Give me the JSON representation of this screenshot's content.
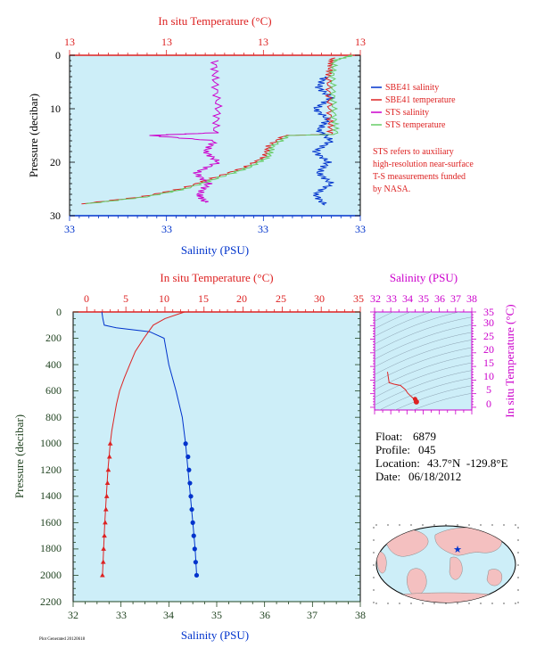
{
  "colors": {
    "panel_fill": "#cdeef8",
    "salinity": "#0033cc",
    "temperature": "#dd2222",
    "sts_salinity": "#cc00cc",
    "sts_temperature": "#66cc66",
    "pressure_axis": "#224422",
    "magenta": "#cc00cc",
    "land": "#f4c0c0",
    "ocean": "#cdeef8"
  },
  "top_panel": {
    "top_axis_label": "In situ Temperature (°C)",
    "bottom_axis_label": "Salinity (PSU)",
    "y_axis_label": "Pressure (decibar)",
    "top_ticks": [
      "13",
      "13",
      "13",
      "13"
    ],
    "bottom_ticks": [
      "33",
      "33",
      "33",
      "33"
    ],
    "y_ticks": [
      "0",
      "10",
      "20",
      "30"
    ],
    "legend": [
      {
        "label": "SBE41 salinity",
        "color": "#0033cc"
      },
      {
        "label": "SBE41 temperature",
        "color": "#dd2222"
      },
      {
        "label": "STS salinity",
        "color": "#cc00cc"
      },
      {
        "label": "STS temperature",
        "color": "#66cc66"
      }
    ],
    "note_lines": [
      "STS refers to auxiliary",
      "high-resolution near-surface",
      "T-S measurements funded",
      "by NASA."
    ]
  },
  "bottom_panel": {
    "top_axis_label": "In situ Temperature (°C)",
    "bottom_axis_label": "Salinity (PSU)",
    "y_axis_label": "Pressure (decibar)",
    "top_ticks": [
      "0",
      "5",
      "10",
      "15",
      "20",
      "25",
      "30",
      "35"
    ],
    "bottom_ticks": [
      "32",
      "33",
      "34",
      "35",
      "36",
      "37",
      "38"
    ],
    "y_ticks": [
      "0",
      "200",
      "400",
      "600",
      "800",
      "1000",
      "1200",
      "1400",
      "1600",
      "1800",
      "2000",
      "2200"
    ]
  },
  "ts_panel": {
    "top_axis_label": "Salinity (PSU)",
    "right_axis_label": "In situ Temperature (°C)",
    "top_ticks": [
      "32",
      "33",
      "34",
      "35",
      "36",
      "37",
      "38"
    ],
    "right_ticks": [
      "0",
      "5",
      "10",
      "15",
      "20",
      "25",
      "30",
      "35"
    ]
  },
  "float_info": [
    {
      "key": "Float:",
      "value": "6879"
    },
    {
      "key": "Profile:",
      "value": "045"
    },
    {
      "key": "Location:",
      "value": "43.7°N  -129.8°E"
    },
    {
      "key": "Date:",
      "value": "06/18/2012"
    }
  ],
  "footer_text": "Plot Generated 20120618",
  "chart_data": [
    {
      "type": "line",
      "title": "",
      "xlabel": "Salinity (PSU)",
      "x2label": "In situ Temperature (°C)",
      "ylabel": "Pressure (decibar)",
      "xlim": [
        32.2,
        33.1
      ],
      "x2lim": [
        8.2,
        15.5
      ],
      "ylim": [
        30,
        0
      ],
      "grid": false,
      "legend_position": "right",
      "series": [
        {
          "name": "SBE41 salinity",
          "axis": "salinity",
          "points": [
            [
              32.99,
              4
            ],
            [
              32.97,
              6
            ],
            [
              33.01,
              8
            ],
            [
              32.96,
              10
            ],
            [
              33.0,
              12
            ],
            [
              32.97,
              14
            ],
            [
              33.01,
              16
            ],
            [
              32.96,
              18
            ],
            [
              33.0,
              20
            ],
            [
              32.97,
              22
            ],
            [
              33.01,
              24
            ],
            [
              32.96,
              26
            ],
            [
              32.99,
              28
            ]
          ]
        },
        {
          "name": "SBE41 temperature",
          "axis": "temperature",
          "points": [
            [
              14.8,
              0.5
            ],
            [
              14.75,
              2
            ],
            [
              14.7,
              4
            ],
            [
              14.72,
              8
            ],
            [
              14.74,
              12
            ],
            [
              14.76,
              14.8
            ],
            [
              13.6,
              15
            ],
            [
              13.2,
              17
            ],
            [
              13.1,
              19
            ],
            [
              12.6,
              21
            ],
            [
              11.8,
              23
            ],
            [
              11.0,
              25
            ],
            [
              10.0,
              26.5
            ],
            [
              8.5,
              27.8
            ]
          ]
        },
        {
          "name": "STS salinity",
          "axis": "salinity",
          "points": [
            [
              32.65,
              1
            ],
            [
              32.65,
              5
            ],
            [
              32.66,
              10
            ],
            [
              32.65,
              14.5
            ],
            [
              32.45,
              15
            ],
            [
              32.65,
              16
            ],
            [
              32.62,
              18
            ],
            [
              32.66,
              20
            ],
            [
              32.59,
              22
            ],
            [
              32.63,
              24
            ],
            [
              32.6,
              26
            ],
            [
              32.62,
              27.5
            ]
          ]
        },
        {
          "name": "STS temperature",
          "axis": "temperature",
          "points": [
            [
              15.3,
              0
            ],
            [
              14.85,
              1
            ],
            [
              14.8,
              4
            ],
            [
              14.82,
              8
            ],
            [
              14.85,
              12
            ],
            [
              14.9,
              14.8
            ],
            [
              13.7,
              15
            ],
            [
              13.3,
              17
            ],
            [
              13.2,
              19
            ],
            [
              12.7,
              21
            ],
            [
              11.9,
              23
            ],
            [
              11.1,
              25
            ],
            [
              10.1,
              26.5
            ],
            [
              8.6,
              27.8
            ]
          ]
        }
      ]
    },
    {
      "type": "line",
      "title": "",
      "xlabel": "Salinity (PSU)",
      "x2label": "In situ Temperature (°C)",
      "ylabel": "Pressure (decibar)",
      "xlim": [
        32,
        38
      ],
      "x2lim": [
        -2,
        35
      ],
      "ylim": [
        2200,
        0
      ],
      "grid": false,
      "series": [
        {
          "name": "Salinity",
          "axis": "salinity",
          "points": [
            [
              32.6,
              0
            ],
            [
              32.62,
              50
            ],
            [
              32.65,
              100
            ],
            [
              32.9,
              120
            ],
            [
              33.6,
              150
            ],
            [
              33.9,
              200
            ],
            [
              34.0,
              400
            ],
            [
              34.15,
              600
            ],
            [
              34.28,
              800
            ],
            [
              34.35,
              1000
            ],
            [
              34.4,
              1200
            ],
            [
              34.45,
              1400
            ],
            [
              34.5,
              1600
            ],
            [
              34.55,
              1800
            ],
            [
              34.58,
              2000
            ]
          ],
          "marker_points": [
            [
              34.35,
              1000
            ],
            [
              34.4,
              1100
            ],
            [
              34.42,
              1200
            ],
            [
              34.44,
              1300
            ],
            [
              34.46,
              1400
            ],
            [
              34.48,
              1500
            ],
            [
              34.5,
              1600
            ],
            [
              34.52,
              1700
            ],
            [
              34.54,
              1800
            ],
            [
              34.56,
              1900
            ],
            [
              34.58,
              2000
            ]
          ]
        },
        {
          "name": "Temperature",
          "axis": "temperature",
          "points": [
            [
              12.5,
              0
            ],
            [
              10.0,
              50
            ],
            [
              8.5,
              100
            ],
            [
              7.3,
              200
            ],
            [
              6.2,
              300
            ],
            [
              5.5,
              400
            ],
            [
              4.8,
              500
            ],
            [
              4.2,
              600
            ],
            [
              3.8,
              700
            ],
            [
              3.5,
              800
            ],
            [
              3.2,
              900
            ],
            [
              3.0,
              1000
            ],
            [
              2.7,
              1200
            ],
            [
              2.5,
              1400
            ],
            [
              2.3,
              1600
            ],
            [
              2.15,
              1800
            ],
            [
              2.0,
              2000
            ]
          ],
          "marker_points": [
            [
              3.0,
              1000
            ],
            [
              2.9,
              1100
            ],
            [
              2.75,
              1200
            ],
            [
              2.65,
              1300
            ],
            [
              2.55,
              1400
            ],
            [
              2.45,
              1500
            ],
            [
              2.35,
              1600
            ],
            [
              2.25,
              1700
            ],
            [
              2.15,
              1800
            ],
            [
              2.1,
              1900
            ],
            [
              2.0,
              2000
            ]
          ]
        }
      ]
    },
    {
      "type": "line",
      "title": "",
      "xlabel": "Salinity (PSU)",
      "ylabel": "In situ Temperature (°C)",
      "xlim": [
        32,
        38
      ],
      "ylim": [
        -1,
        35
      ],
      "grid": false,
      "series": [
        {
          "name": "T-S",
          "points": [
            [
              32.8,
              13
            ],
            [
              32.9,
              9
            ],
            [
              33.2,
              8.5
            ],
            [
              33.6,
              8.0
            ],
            [
              33.9,
              6.5
            ],
            [
              34.05,
              5.2
            ],
            [
              34.2,
              4.3
            ],
            [
              34.35,
              3.5
            ],
            [
              34.5,
              3.0
            ],
            [
              34.58,
              2.0
            ]
          ]
        }
      ]
    }
  ]
}
